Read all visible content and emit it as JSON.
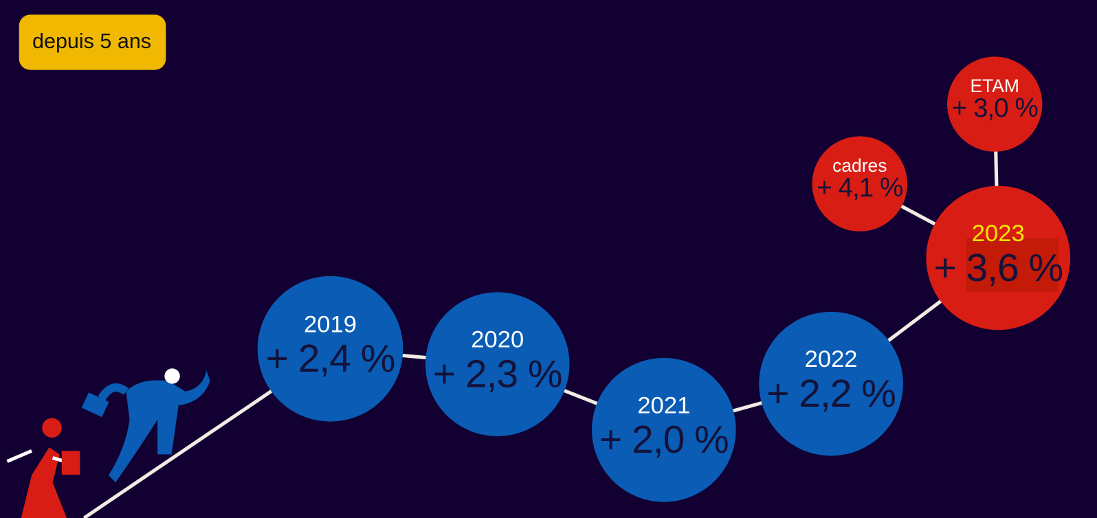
{
  "badge": "depuis 5 ans",
  "nodes": [
    {
      "label": "2019",
      "value": "+ 2,4 %"
    },
    {
      "label": "2020",
      "value": "+ 2,3 %"
    },
    {
      "label": "2021",
      "value": "+ 2,0 %"
    },
    {
      "label": "2022",
      "value": "+ 2,2 %"
    },
    {
      "label": "2023",
      "value": "+ 3,6 %"
    },
    {
      "label": "cadres",
      "value": "+ 4,1 %"
    },
    {
      "label": "ETAM",
      "value": "+ 3,0 %"
    }
  ]
}
